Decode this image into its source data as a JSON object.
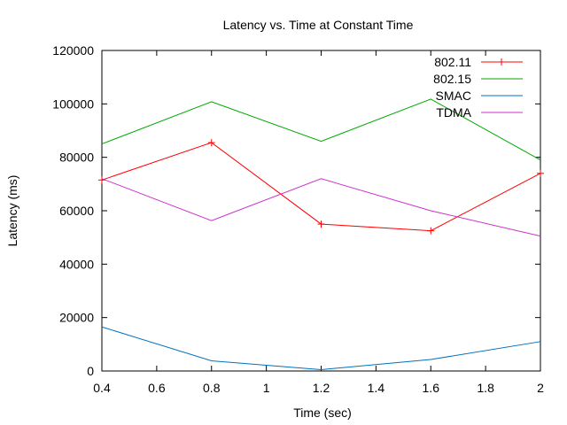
{
  "chart_data": {
    "type": "line",
    "title": "Latency vs. Time at Constant Time",
    "xlabel": "Time (sec)",
    "ylabel": "Latency (ms)",
    "xlim": [
      0.4,
      2
    ],
    "ylim": [
      0,
      120000
    ],
    "x_ticks": [
      "0.4",
      "0.6",
      "0.8",
      "1",
      "1.2",
      "1.4",
      "1.6",
      "1.8",
      "2"
    ],
    "y_ticks": [
      "0",
      "20000",
      "40000",
      "60000",
      "80000",
      "100000",
      "120000"
    ],
    "x_tick_values": [
      0.4,
      0.6,
      0.8,
      1.0,
      1.2,
      1.4,
      1.6,
      1.8,
      2.0
    ],
    "y_tick_values": [
      0,
      20000,
      40000,
      60000,
      80000,
      100000,
      120000
    ],
    "grid": false,
    "legend_position": "top-right",
    "x": [
      0.4,
      0.8,
      1.2,
      1.6,
      2.0
    ],
    "series": [
      {
        "name": "802.11",
        "color": "#ff0000",
        "marker": "plus",
        "values": [
          71500,
          85500,
          55000,
          52500,
          74000
        ]
      },
      {
        "name": "802.15",
        "color": "#00aa00",
        "marker": "none",
        "values": [
          85000,
          100800,
          86000,
          101800,
          79000
        ]
      },
      {
        "name": "SMAC",
        "color": "#0072bd",
        "marker": "none",
        "values": [
          16500,
          3800,
          500,
          4300,
          11000
        ]
      },
      {
        "name": "TDMA",
        "color": "#cc33cc",
        "marker": "none",
        "values": [
          72000,
          56300,
          72000,
          60000,
          50500
        ]
      }
    ]
  }
}
